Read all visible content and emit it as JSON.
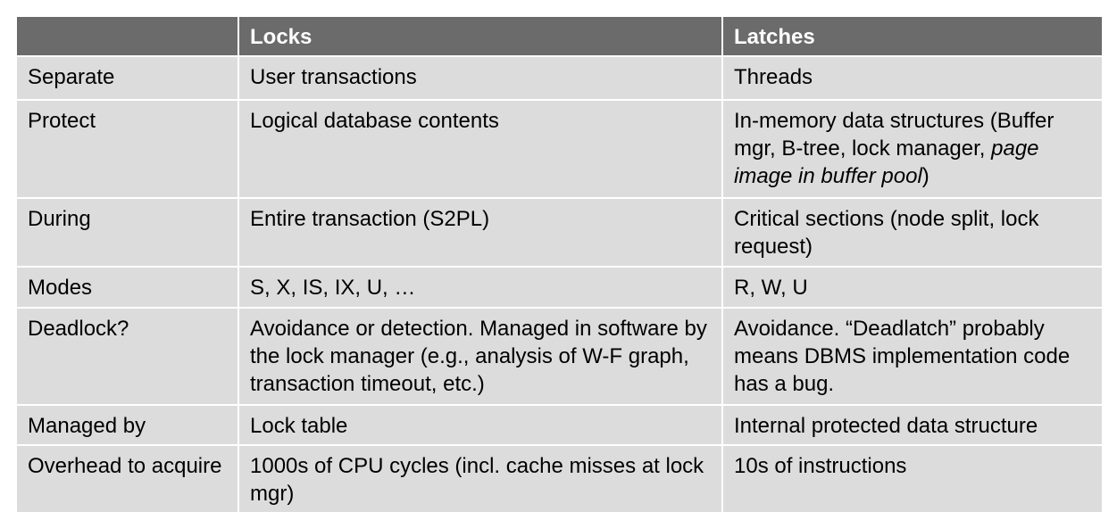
{
  "table": {
    "headers": [
      "",
      "Locks",
      "Latches"
    ],
    "rows": [
      {
        "label": "Separate",
        "locks": "User transactions",
        "latches": "Threads"
      },
      {
        "label": "Protect",
        "locks": "Logical database contents",
        "latches_prefix": "In-memory data structures (Buffer mgr, B-tree, lock manager, ",
        "latches_italic": "page image in buffer pool",
        "latches_suffix": ")"
      },
      {
        "label": "During",
        "locks": "Entire transaction (S2PL)",
        "latches": "Critical sections (node split, lock request)"
      },
      {
        "label": "Modes",
        "locks": "S, X, IS, IX, U, …",
        "latches": "R, W, U"
      },
      {
        "label": "Deadlock?",
        "locks": "Avoidance or detection. Managed in software by the lock manager (e.g., analysis of W-F graph, transaction timeout, etc.)",
        "latches": "Avoidance. “Deadlatch” probably means DBMS implementation code has a bug."
      },
      {
        "label": "Managed by",
        "locks": "Lock table",
        "latches": "Internal protected data structure"
      },
      {
        "label": "Overhead to acquire",
        "locks": "1000s of CPU cycles (incl. cache misses at lock mgr)",
        "latches": "10s of instructions"
      }
    ]
  },
  "colors": {
    "header_bg": "#6b6b6b",
    "header_text": "#ffffff",
    "cell_bg": "#dcdcdc"
  }
}
